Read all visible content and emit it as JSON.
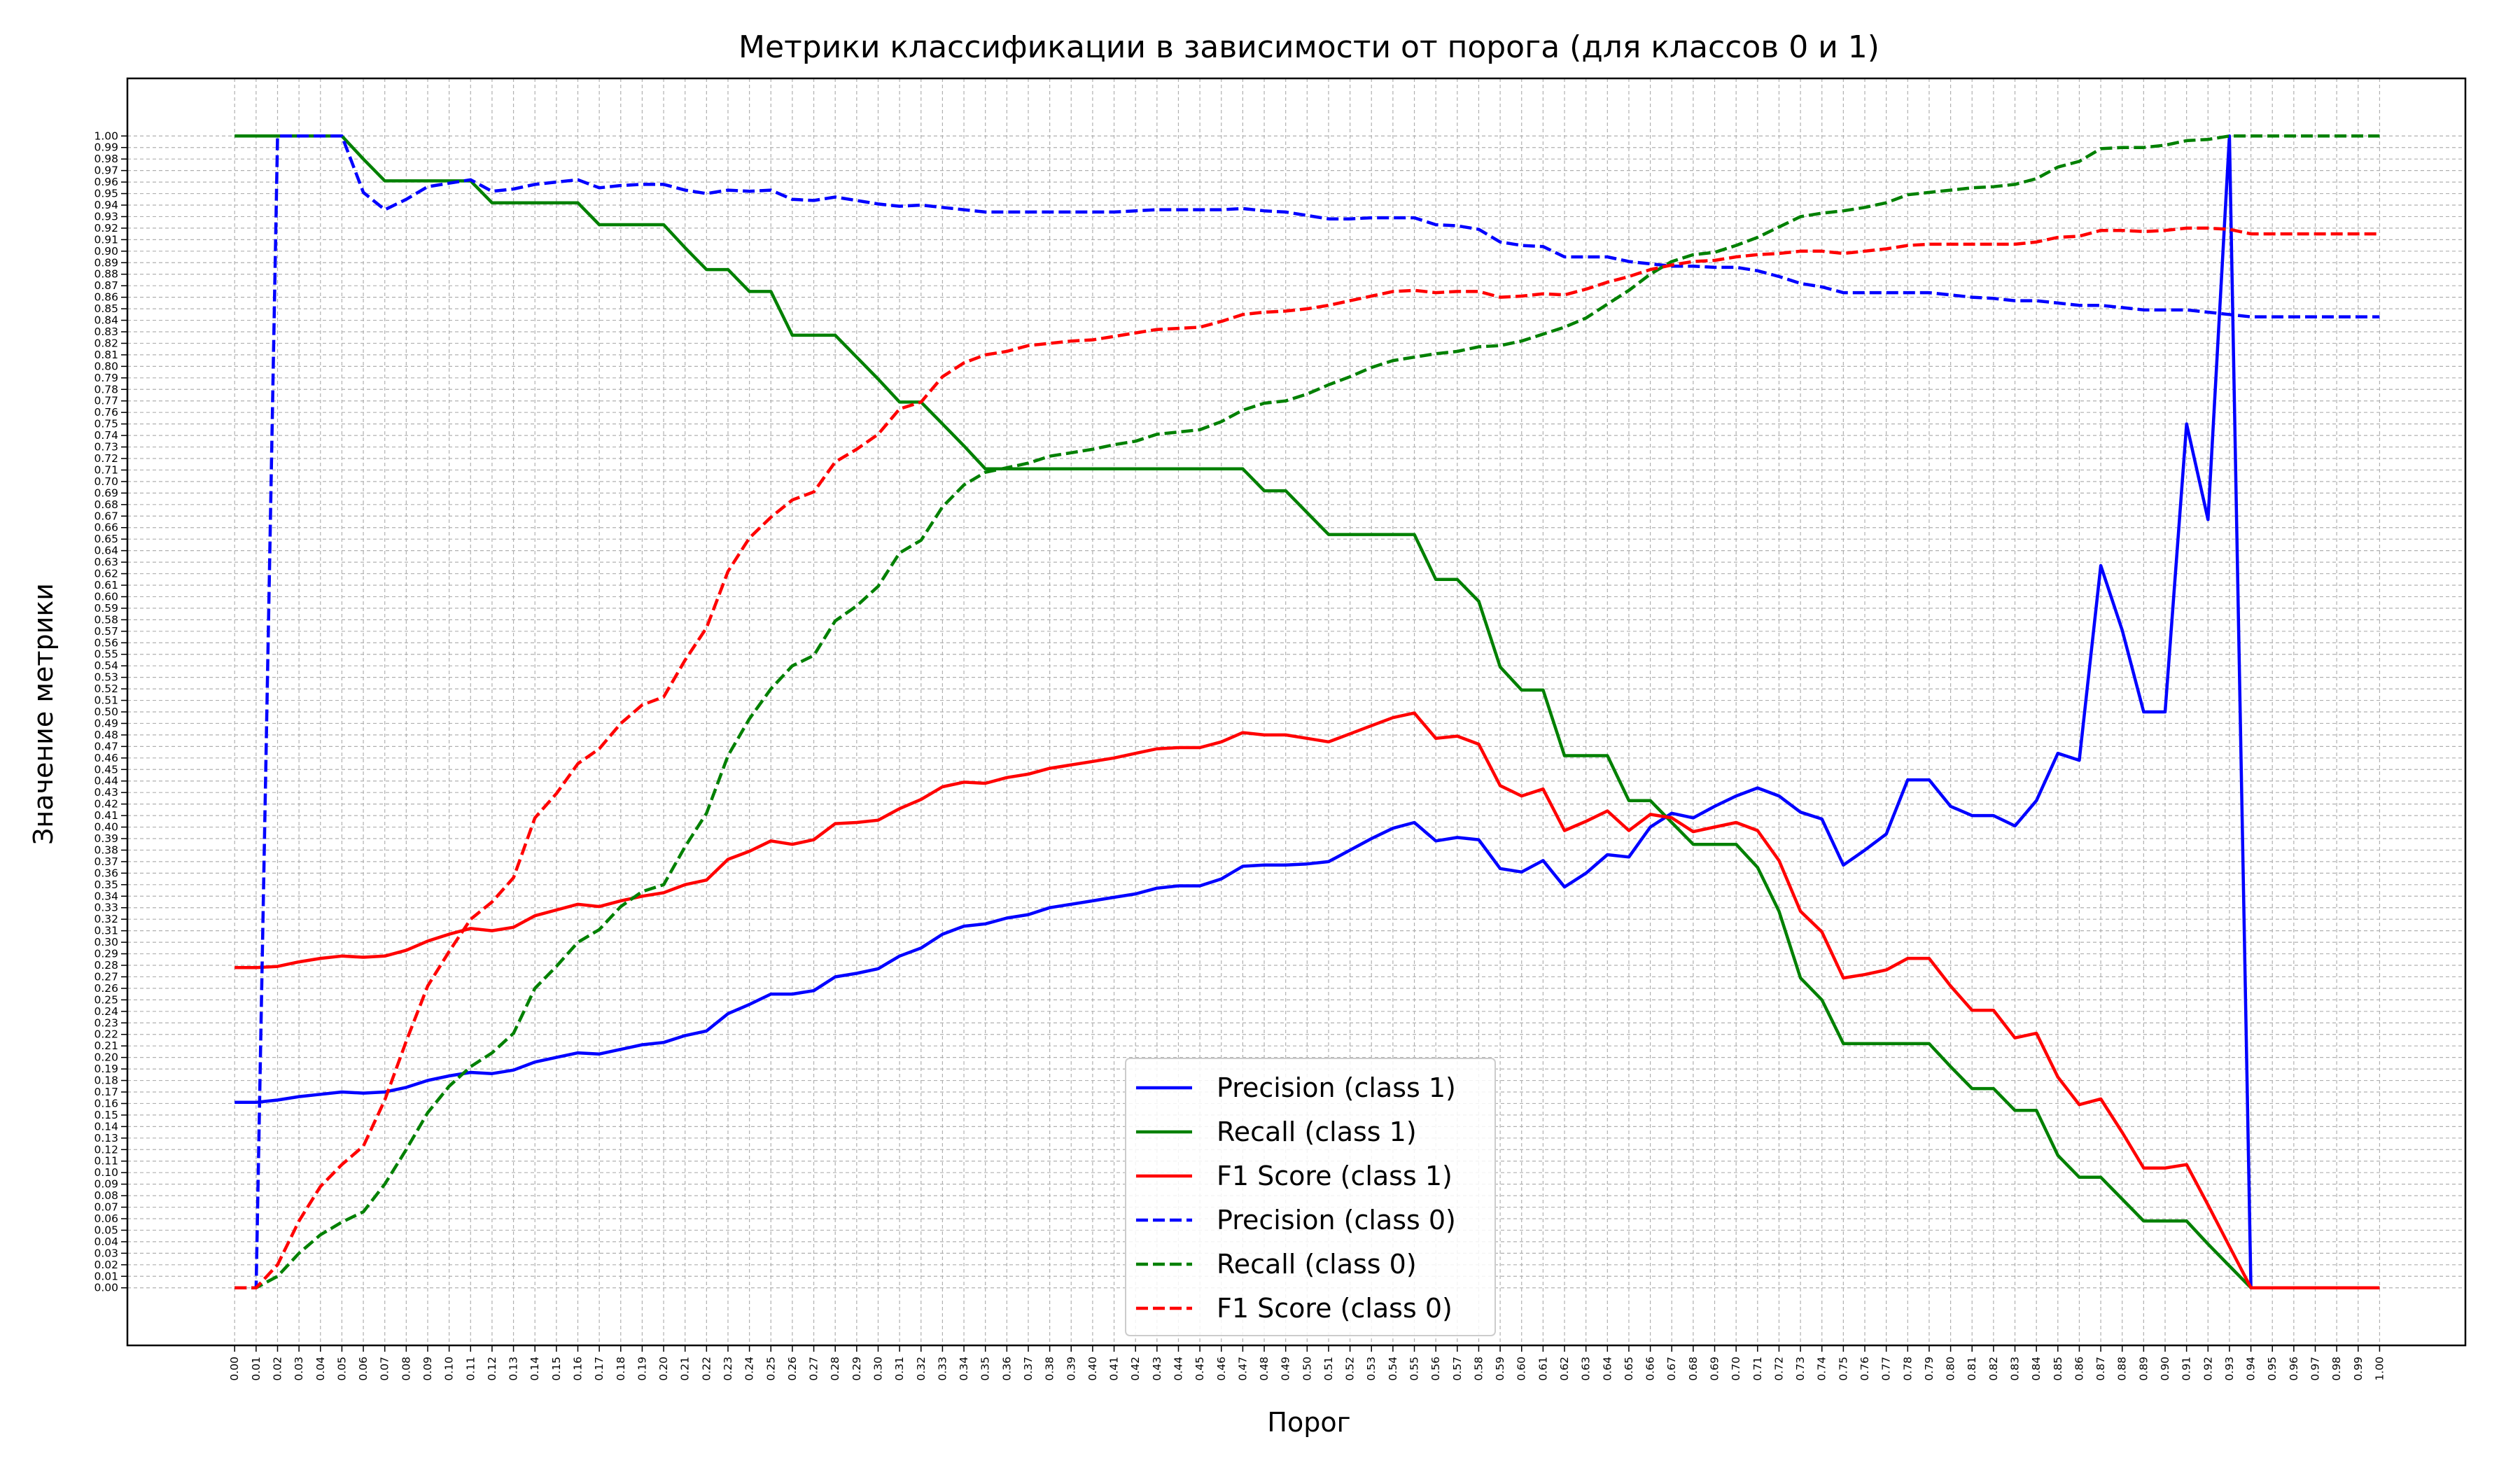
{
  "chart_data": {
    "type": "line",
    "title": "Метрики классификации в зависимости от порога (для классов 0 и 1)",
    "xlabel": "Порог",
    "ylabel": "Значение метрики",
    "xlim": [
      -0.05,
      1.04
    ],
    "ylim": [
      -0.05,
      1.05
    ],
    "grid": true,
    "legend_placement": "lower center",
    "x": [
      0.0,
      0.01,
      0.02,
      0.03,
      0.04,
      0.05,
      0.06,
      0.07,
      0.08,
      0.09,
      0.1,
      0.11,
      0.12,
      0.13,
      0.14,
      0.15,
      0.16,
      0.17,
      0.18,
      0.19,
      0.2,
      0.21,
      0.22,
      0.23,
      0.24,
      0.25,
      0.26,
      0.27,
      0.28,
      0.29,
      0.3,
      0.31,
      0.32,
      0.33,
      0.34,
      0.35,
      0.36,
      0.37,
      0.38,
      0.39,
      0.4,
      0.41,
      0.42,
      0.43,
      0.44,
      0.45,
      0.46,
      0.47,
      0.48,
      0.49,
      0.5,
      0.51,
      0.52,
      0.53,
      0.54,
      0.55,
      0.56,
      0.57,
      0.58,
      0.59,
      0.6,
      0.61,
      0.62,
      0.63,
      0.64,
      0.65,
      0.66,
      0.67,
      0.68,
      0.69,
      0.7,
      0.71,
      0.72,
      0.73,
      0.74,
      0.75,
      0.76,
      0.77,
      0.78,
      0.79,
      0.8,
      0.81,
      0.82,
      0.83,
      0.84,
      0.85,
      0.86,
      0.87,
      0.88,
      0.89,
      0.9,
      0.91,
      0.92,
      0.93,
      0.94,
      0.95,
      0.96,
      0.97,
      0.98,
      0.99,
      1.0
    ],
    "x_tick_labels": [
      "0.00",
      "0.01",
      "0.02",
      "0.03",
      "0.04",
      "0.05",
      "0.06",
      "0.07",
      "0.08",
      "0.09",
      "0.10",
      "0.11",
      "0.12",
      "0.13",
      "0.14",
      "0.15",
      "0.16",
      "0.17",
      "0.18",
      "0.19",
      "0.20",
      "0.21",
      "0.22",
      "0.23",
      "0.24",
      "0.25",
      "0.26",
      "0.27",
      "0.28",
      "0.29",
      "0.30",
      "0.31",
      "0.32",
      "0.33",
      "0.34",
      "0.35",
      "0.36",
      "0.37",
      "0.38",
      "0.39",
      "0.40",
      "0.41",
      "0.42",
      "0.43",
      "0.44",
      "0.45",
      "0.46",
      "0.47",
      "0.48",
      "0.49",
      "0.50",
      "0.51",
      "0.52",
      "0.53",
      "0.54",
      "0.55",
      "0.56",
      "0.57",
      "0.58",
      "0.59",
      "0.60",
      "0.61",
      "0.62",
      "0.63",
      "0.64",
      "0.65",
      "0.66",
      "0.67",
      "0.68",
      "0.69",
      "0.70",
      "0.71",
      "0.72",
      "0.73",
      "0.74",
      "0.75",
      "0.76",
      "0.77",
      "0.78",
      "0.79",
      "0.80",
      "0.81",
      "0.82",
      "0.83",
      "0.84",
      "0.85",
      "0.86",
      "0.87",
      "0.88",
      "0.89",
      "0.90",
      "0.91",
      "0.92",
      "0.93",
      "0.94",
      "0.95",
      "0.96",
      "0.97",
      "0.98",
      "0.99",
      "1.00"
    ],
    "y_tick_labels": [
      "0.00",
      "0.01",
      "0.02",
      "0.03",
      "0.04",
      "0.05",
      "0.06",
      "0.07",
      "0.08",
      "0.09",
      "0.10",
      "0.11",
      "0.12",
      "0.13",
      "0.14",
      "0.15",
      "0.16",
      "0.17",
      "0.18",
      "0.19",
      "0.20",
      "0.21",
      "0.22",
      "0.23",
      "0.24",
      "0.25",
      "0.26",
      "0.27",
      "0.28",
      "0.29",
      "0.30",
      "0.31",
      "0.32",
      "0.33",
      "0.34",
      "0.35",
      "0.36",
      "0.37",
      "0.38",
      "0.39",
      "0.40",
      "0.41",
      "0.42",
      "0.43",
      "0.44",
      "0.45",
      "0.46",
      "0.47",
      "0.48",
      "0.49",
      "0.50",
      "0.51",
      "0.52",
      "0.53",
      "0.54",
      "0.55",
      "0.56",
      "0.57",
      "0.58",
      "0.59",
      "0.60",
      "0.61",
      "0.62",
      "0.63",
      "0.64",
      "0.65",
      "0.66",
      "0.67",
      "0.68",
      "0.69",
      "0.70",
      "0.71",
      "0.72",
      "0.73",
      "0.74",
      "0.75",
      "0.76",
      "0.77",
      "0.78",
      "0.79",
      "0.80",
      "0.81",
      "0.82",
      "0.83",
      "0.84",
      "0.85",
      "0.86",
      "0.87",
      "0.88",
      "0.89",
      "0.90",
      "0.91",
      "0.92",
      "0.93",
      "0.94",
      "0.95",
      "0.96",
      "0.97",
      "0.98",
      "0.99",
      "1.00"
    ],
    "series": [
      {
        "name": "Precision (class 1)",
        "color": "#0000ff",
        "dash": "solid",
        "values": [
          0.161,
          0.161,
          0.163,
          0.166,
          0.168,
          0.17,
          0.169,
          0.17,
          0.174,
          0.18,
          0.184,
          0.187,
          0.186,
          0.189,
          0.196,
          0.2,
          0.204,
          0.203,
          0.207,
          0.211,
          0.213,
          0.219,
          0.223,
          0.238,
          0.246,
          0.255,
          0.255,
          0.258,
          0.27,
          0.273,
          0.277,
          0.288,
          0.295,
          0.307,
          0.314,
          0.316,
          0.321,
          0.324,
          0.33,
          0.333,
          0.336,
          0.339,
          0.342,
          0.347,
          0.349,
          0.349,
          0.355,
          0.366,
          0.367,
          0.367,
          0.368,
          0.37,
          0.38,
          0.39,
          0.399,
          0.404,
          0.388,
          0.391,
          0.389,
          0.364,
          0.361,
          0.371,
          0.348,
          0.36,
          0.376,
          0.374,
          0.4,
          0.412,
          0.408,
          0.418,
          0.427,
          0.434,
          0.427,
          0.413,
          0.407,
          0.367,
          0.38,
          0.394,
          0.441,
          0.441,
          0.418,
          0.41,
          0.41,
          0.401,
          0.423,
          0.464,
          0.458,
          0.627,
          0.571,
          0.5,
          0.5,
          0.75,
          0.667,
          1.0,
          0.0,
          0.0,
          0.0,
          0.0,
          0.0,
          0.0,
          0.0
        ]
      },
      {
        "name": "Recall (class 1)",
        "color": "#008000",
        "dash": "solid",
        "values": [
          1.0,
          1.0,
          1.0,
          1.0,
          1.0,
          1.0,
          0.98,
          0.961,
          0.961,
          0.961,
          0.961,
          0.961,
          0.942,
          0.942,
          0.942,
          0.942,
          0.942,
          0.923,
          0.923,
          0.923,
          0.923,
          0.903,
          0.884,
          0.884,
          0.865,
          0.865,
          0.827,
          0.827,
          0.827,
          0.808,
          0.789,
          0.769,
          0.769,
          0.75,
          0.731,
          0.711,
          0.711,
          0.711,
          0.711,
          0.711,
          0.711,
          0.711,
          0.711,
          0.711,
          0.711,
          0.711,
          0.711,
          0.711,
          0.692,
          0.692,
          0.673,
          0.654,
          0.654,
          0.654,
          0.654,
          0.654,
          0.615,
          0.615,
          0.596,
          0.539,
          0.519,
          0.519,
          0.462,
          0.462,
          0.462,
          0.423,
          0.423,
          0.404,
          0.385,
          0.385,
          0.385,
          0.365,
          0.327,
          0.269,
          0.25,
          0.212,
          0.212,
          0.212,
          0.212,
          0.212,
          0.192,
          0.173,
          0.173,
          0.154,
          0.154,
          0.115,
          0.096,
          0.096,
          0.077,
          0.058,
          0.058,
          0.058,
          0.038,
          0.019,
          0.0,
          0.0,
          0.0,
          0.0,
          0.0,
          0.0,
          0.0
        ]
      },
      {
        "name": "F1 Score (class 1)",
        "color": "#ff0000",
        "dash": "solid",
        "values": [
          0.278,
          0.278,
          0.279,
          0.283,
          0.286,
          0.288,
          0.287,
          0.288,
          0.293,
          0.301,
          0.307,
          0.312,
          0.31,
          0.313,
          0.323,
          0.328,
          0.333,
          0.331,
          0.336,
          0.34,
          0.343,
          0.35,
          0.354,
          0.372,
          0.379,
          0.388,
          0.385,
          0.389,
          0.403,
          0.404,
          0.406,
          0.416,
          0.424,
          0.435,
          0.439,
          0.438,
          0.443,
          0.446,
          0.451,
          0.454,
          0.457,
          0.46,
          0.464,
          0.468,
          0.469,
          0.469,
          0.474,
          0.482,
          0.48,
          0.48,
          0.477,
          0.474,
          0.481,
          0.488,
          0.495,
          0.499,
          0.477,
          0.479,
          0.472,
          0.436,
          0.427,
          0.433,
          0.397,
          0.405,
          0.414,
          0.397,
          0.411,
          0.408,
          0.396,
          0.4,
          0.404,
          0.397,
          0.371,
          0.327,
          0.309,
          0.269,
          0.272,
          0.276,
          0.286,
          0.286,
          0.262,
          0.241,
          0.241,
          0.217,
          0.221,
          0.183,
          0.159,
          0.164,
          0.135,
          0.104,
          0.104,
          0.107,
          0.072,
          0.036,
          0.0,
          0.0,
          0.0,
          0.0,
          0.0,
          0.0,
          0.0
        ]
      },
      {
        "name": "Precision (class 0)",
        "color": "#0000ff",
        "dash": "dashed",
        "values": [
          0.0,
          0.0,
          1.0,
          1.0,
          1.0,
          1.0,
          0.951,
          0.936,
          0.945,
          0.956,
          0.959,
          0.962,
          0.952,
          0.954,
          0.958,
          0.96,
          0.962,
          0.955,
          0.957,
          0.958,
          0.958,
          0.953,
          0.95,
          0.953,
          0.952,
          0.953,
          0.945,
          0.944,
          0.947,
          0.944,
          0.941,
          0.939,
          0.94,
          0.938,
          0.936,
          0.934,
          0.934,
          0.934,
          0.934,
          0.934,
          0.934,
          0.934,
          0.935,
          0.936,
          0.936,
          0.936,
          0.936,
          0.937,
          0.935,
          0.934,
          0.931,
          0.928,
          0.928,
          0.929,
          0.929,
          0.929,
          0.923,
          0.922,
          0.919,
          0.908,
          0.905,
          0.904,
          0.895,
          0.895,
          0.895,
          0.891,
          0.889,
          0.887,
          0.887,
          0.886,
          0.886,
          0.883,
          0.878,
          0.872,
          0.869,
          0.864,
          0.864,
          0.864,
          0.864,
          0.864,
          0.862,
          0.86,
          0.859,
          0.857,
          0.857,
          0.855,
          0.853,
          0.853,
          0.851,
          0.849,
          0.849,
          0.849,
          0.847,
          0.845,
          0.843,
          0.843,
          0.843,
          0.843,
          0.843,
          0.843,
          0.843
        ]
      },
      {
        "name": "Recall (class 0)",
        "color": "#008000",
        "dash": "dashed",
        "values": [
          0.0,
          0.0,
          0.01,
          0.03,
          0.046,
          0.057,
          0.066,
          0.09,
          0.12,
          0.152,
          0.175,
          0.192,
          0.204,
          0.221,
          0.26,
          0.279,
          0.3,
          0.311,
          0.331,
          0.344,
          0.35,
          0.383,
          0.412,
          0.462,
          0.494,
          0.52,
          0.54,
          0.549,
          0.579,
          0.592,
          0.609,
          0.638,
          0.649,
          0.678,
          0.697,
          0.708,
          0.712,
          0.716,
          0.722,
          0.725,
          0.728,
          0.732,
          0.735,
          0.741,
          0.743,
          0.745,
          0.752,
          0.762,
          0.768,
          0.77,
          0.776,
          0.784,
          0.791,
          0.799,
          0.805,
          0.808,
          0.811,
          0.813,
          0.817,
          0.818,
          0.822,
          0.828,
          0.834,
          0.842,
          0.854,
          0.866,
          0.88,
          0.891,
          0.897,
          0.899,
          0.905,
          0.912,
          0.921,
          0.93,
          0.933,
          0.935,
          0.938,
          0.942,
          0.949,
          0.951,
          0.953,
          0.955,
          0.956,
          0.958,
          0.963,
          0.973,
          0.978,
          0.989,
          0.99,
          0.99,
          0.992,
          0.996,
          0.997,
          1.0,
          1.0,
          1.0,
          1.0,
          1.0,
          1.0,
          1.0,
          1.0
        ]
      },
      {
        "name": "F1 Score (class 0)",
        "color": "#ff0000",
        "dash": "dashed",
        "values": [
          0.0,
          0.0,
          0.02,
          0.058,
          0.088,
          0.107,
          0.123,
          0.163,
          0.214,
          0.262,
          0.292,
          0.32,
          0.335,
          0.356,
          0.408,
          0.429,
          0.455,
          0.468,
          0.49,
          0.506,
          0.513,
          0.545,
          0.573,
          0.622,
          0.651,
          0.669,
          0.684,
          0.691,
          0.717,
          0.728,
          0.741,
          0.763,
          0.769,
          0.791,
          0.803,
          0.81,
          0.813,
          0.818,
          0.82,
          0.822,
          0.823,
          0.826,
          0.829,
          0.832,
          0.833,
          0.834,
          0.839,
          0.845,
          0.847,
          0.848,
          0.85,
          0.853,
          0.857,
          0.861,
          0.865,
          0.866,
          0.864,
          0.865,
          0.865,
          0.86,
          0.861,
          0.863,
          0.862,
          0.867,
          0.873,
          0.878,
          0.884,
          0.888,
          0.891,
          0.892,
          0.895,
          0.897,
          0.898,
          0.9,
          0.9,
          0.898,
          0.9,
          0.902,
          0.905,
          0.906,
          0.906,
          0.906,
          0.906,
          0.906,
          0.908,
          0.912,
          0.913,
          0.918,
          0.918,
          0.917,
          0.918,
          0.92,
          0.92,
          0.919,
          0.915,
          0.915,
          0.915,
          0.915,
          0.915,
          0.915,
          0.915
        ]
      }
    ]
  }
}
